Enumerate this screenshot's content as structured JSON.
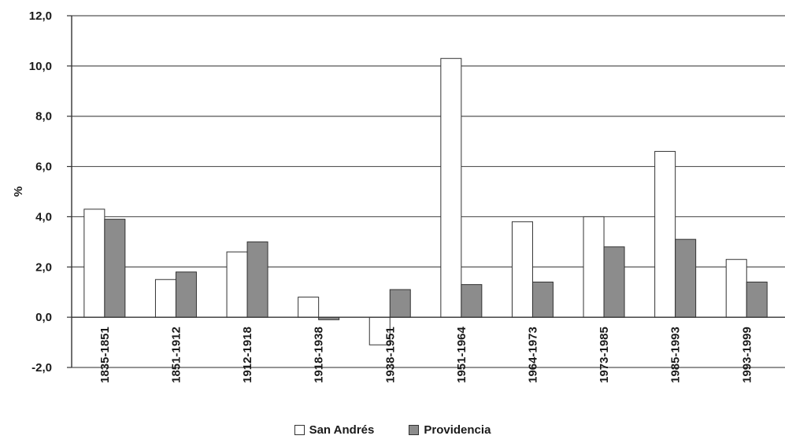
{
  "chart_data": {
    "type": "bar",
    "categories": [
      "1835-1851",
      "1851-1912",
      "1912-1918",
      "1918-1938",
      "1938-1951",
      "1951-1964",
      "1964-1973",
      "1973-1985",
      "1985-1993",
      "1993-1999"
    ],
    "series": [
      {
        "name": "San Andrés",
        "values": [
          4.3,
          1.5,
          2.6,
          0.8,
          -1.1,
          10.3,
          3.8,
          4.0,
          6.6,
          2.3
        ]
      },
      {
        "name": "Providencia",
        "values": [
          3.9,
          1.8,
          3.0,
          -0.1,
          1.1,
          1.3,
          1.4,
          2.8,
          3.1,
          1.4
        ]
      }
    ],
    "ylabel": "%",
    "ylim": [
      -2.0,
      12.0
    ],
    "yticks": [
      "12,0",
      "10,0",
      "8,0",
      "6,0",
      "4,0",
      "2,0",
      "0,0",
      "-2,0"
    ],
    "ytick_values": [
      12,
      10,
      8,
      6,
      4,
      2,
      0,
      -2
    ],
    "grid": true,
    "legend_position": "bottom",
    "colors": {
      "San Andrés": "#ffffff",
      "Providencia": "#8c8c8c",
      "border": "#333333",
      "grid": "#555555"
    }
  }
}
